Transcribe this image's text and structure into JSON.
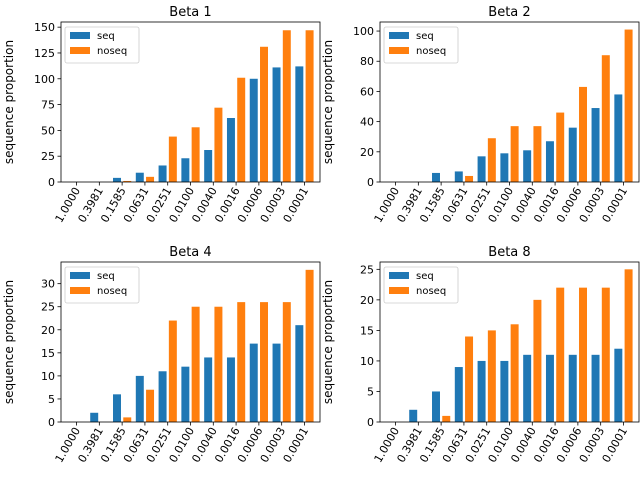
{
  "chart_data": [
    {
      "type": "bar",
      "title": "Beta 1",
      "ylabel": "sequence proportion",
      "categories": [
        "1.0000",
        "0.3981",
        "0.1585",
        "0.0631",
        "0.0251",
        "0.0100",
        "0.0040",
        "0.0016",
        "0.0006",
        "0.0003",
        "0.0001"
      ],
      "series": [
        {
          "name": "seq",
          "color": "#1f77b4",
          "values": [
            0,
            0,
            4,
            9,
            16,
            23,
            31,
            62,
            100,
            111,
            112
          ]
        },
        {
          "name": "noseq",
          "color": "#ff7f0e",
          "values": [
            0,
            0,
            1,
            5,
            44,
            53,
            72,
            101,
            131,
            147,
            147
          ]
        }
      ],
      "ylim": [
        0,
        155
      ],
      "yticks": [
        0,
        25,
        50,
        75,
        100,
        125,
        150
      ],
      "legend": "upper-left",
      "grid": false
    },
    {
      "type": "bar",
      "title": "Beta 2",
      "ylabel": "sequence proportion",
      "categories": [
        "1.0000",
        "0.3981",
        "0.1585",
        "0.0631",
        "0.0251",
        "0.0100",
        "0.0040",
        "0.0016",
        "0.0006",
        "0.0003",
        "0.0001"
      ],
      "series": [
        {
          "name": "seq",
          "color": "#1f77b4",
          "values": [
            0,
            0,
            6,
            7,
            17,
            19,
            21,
            27,
            36,
            49,
            58
          ]
        },
        {
          "name": "noseq",
          "color": "#ff7f0e",
          "values": [
            0,
            0,
            0,
            4,
            29,
            37,
            37,
            46,
            63,
            84,
            101
          ]
        }
      ],
      "ylim": [
        0,
        106
      ],
      "yticks": [
        0,
        20,
        40,
        60,
        80,
        100
      ],
      "legend": "upper-left",
      "grid": false
    },
    {
      "type": "bar",
      "title": "Beta 4",
      "ylabel": "sequence proportion",
      "categories": [
        "1.0000",
        "0.3981",
        "0.1585",
        "0.0631",
        "0.0251",
        "0.0100",
        "0.0040",
        "0.0016",
        "0.0006",
        "0.0003",
        "0.0001"
      ],
      "series": [
        {
          "name": "seq",
          "color": "#1f77b4",
          "values": [
            0,
            2,
            6,
            10,
            11,
            12,
            14,
            14,
            17,
            17,
            21
          ]
        },
        {
          "name": "noseq",
          "color": "#ff7f0e",
          "values": [
            0,
            0,
            1,
            7,
            22,
            25,
            25,
            26,
            26,
            26,
            33
          ]
        }
      ],
      "ylim": [
        0,
        34.7
      ],
      "yticks": [
        0,
        5,
        10,
        15,
        20,
        25,
        30
      ],
      "legend": "upper-left",
      "grid": false
    },
    {
      "type": "bar",
      "title": "Beta 8",
      "ylabel": "sequence proportion",
      "categories": [
        "1.0000",
        "0.3981",
        "0.1585",
        "0.0631",
        "0.0251",
        "0.0100",
        "0.0040",
        "0.0016",
        "0.0006",
        "0.0003",
        "0.0001"
      ],
      "series": [
        {
          "name": "seq",
          "color": "#1f77b4",
          "values": [
            0,
            2,
            5,
            9,
            10,
            10,
            11,
            11,
            11,
            11,
            12
          ]
        },
        {
          "name": "noseq",
          "color": "#ff7f0e",
          "values": [
            0,
            0,
            1,
            14,
            15,
            16,
            20,
            22,
            22,
            22,
            25
          ]
        }
      ],
      "ylim": [
        0,
        26.2
      ],
      "yticks": [
        0,
        5,
        10,
        15,
        20,
        25
      ],
      "legend": "upper-left",
      "grid": false
    }
  ]
}
